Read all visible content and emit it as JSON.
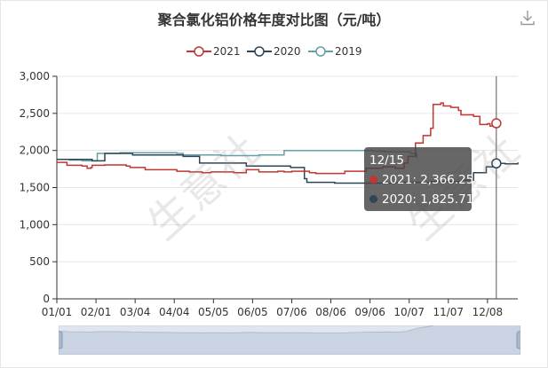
{
  "toolbar": {
    "download_icon": "download-icon"
  },
  "watermark": "生意社",
  "tooltip": {
    "date": "12/15",
    "rows": [
      {
        "label": "2021: 2,366.25",
        "color": "#c23531"
      },
      {
        "label": "2020: 1,825.71",
        "color": "#2f4554"
      }
    ]
  },
  "colors": {
    "s2021": "#c23531",
    "s2020": "#2f4554",
    "s2019": "#61a0a8",
    "axis": "#333333",
    "grid": "#e6e6e6",
    "crosshair": "#555555"
  },
  "chart_data": {
    "type": "line",
    "title": "聚合氯化铝价格年度对比图（元/吨）",
    "ylim": [
      0,
      3000
    ],
    "yticks": [
      0,
      500,
      1000,
      1500,
      2000,
      2500,
      3000
    ],
    "ytick_labels": [
      "0",
      "500",
      "1,000",
      "1,500",
      "2,000",
      "2,500",
      "3,000"
    ],
    "xlim": [
      0,
      365
    ],
    "xticks": [
      {
        "label": "01/01",
        "day": 0
      },
      {
        "label": "02/01",
        "day": 31
      },
      {
        "label": "03/04",
        "day": 62
      },
      {
        "label": "04/04",
        "day": 93
      },
      {
        "label": "05/05",
        "day": 124
      },
      {
        "label": "06/05",
        "day": 155
      },
      {
        "label": "07/06",
        "day": 186
      },
      {
        "label": "08/06",
        "day": 217
      },
      {
        "label": "09/06",
        "day": 248
      },
      {
        "label": "10/07",
        "day": 279
      },
      {
        "label": "11/07",
        "day": 310
      },
      {
        "label": "12/08",
        "day": 341
      }
    ],
    "crosshair_day": 348,
    "legend": {
      "position": "top-center"
    },
    "series": [
      {
        "name": "2021",
        "points": [
          [
            0,
            1840
          ],
          [
            8,
            1800
          ],
          [
            20,
            1790
          ],
          [
            24,
            1760
          ],
          [
            27,
            1770
          ],
          [
            28,
            1800
          ],
          [
            38,
            1805
          ],
          [
            55,
            1790
          ],
          [
            58,
            1770
          ],
          [
            70,
            1740
          ],
          [
            80,
            1740
          ],
          [
            95,
            1720
          ],
          [
            105,
            1710
          ],
          [
            115,
            1700
          ],
          [
            122,
            1710
          ],
          [
            140,
            1700
          ],
          [
            150,
            1740
          ],
          [
            160,
            1710
          ],
          [
            175,
            1720
          ],
          [
            180,
            1710
          ],
          [
            186,
            1720
          ],
          [
            200,
            1700
          ],
          [
            205,
            1690
          ],
          [
            225,
            1690
          ],
          [
            228,
            1720
          ],
          [
            245,
            1760
          ],
          [
            258,
            1780
          ],
          [
            268,
            1760
          ],
          [
            275,
            1830
          ],
          [
            278,
            1920
          ],
          [
            284,
            2100
          ],
          [
            290,
            2200
          ],
          [
            296,
            2300
          ],
          [
            298,
            2620
          ],
          [
            304,
            2640
          ],
          [
            306,
            2600
          ],
          [
            312,
            2580
          ],
          [
            318,
            2540
          ],
          [
            320,
            2480
          ],
          [
            330,
            2460
          ],
          [
            335,
            2350
          ],
          [
            341,
            2360
          ],
          [
            343,
            2330
          ],
          [
            346,
            2366
          ],
          [
            348,
            2366.25
          ]
        ]
      },
      {
        "name": "2020",
        "points": [
          [
            0,
            1880
          ],
          [
            10,
            1880
          ],
          [
            25,
            1880
          ],
          [
            28,
            1860
          ],
          [
            35,
            1860
          ],
          [
            38,
            1960
          ],
          [
            45,
            1960
          ],
          [
            60,
            1940
          ],
          [
            85,
            1940
          ],
          [
            95,
            1940
          ],
          [
            100,
            1920
          ],
          [
            110,
            1920
          ],
          [
            113,
            1830
          ],
          [
            125,
            1830
          ],
          [
            140,
            1830
          ],
          [
            150,
            1790
          ],
          [
            170,
            1790
          ],
          [
            185,
            1770
          ],
          [
            192,
            1770
          ],
          [
            196,
            1620
          ],
          [
            198,
            1570
          ],
          [
            210,
            1570
          ],
          [
            220,
            1560
          ],
          [
            250,
            1560
          ],
          [
            268,
            1570
          ],
          [
            296,
            1580
          ],
          [
            320,
            1600
          ],
          [
            330,
            1700
          ],
          [
            340,
            1780
          ],
          [
            348,
            1825.71
          ],
          [
            355,
            1820
          ],
          [
            365,
            1840
          ]
        ]
      },
      {
        "name": "2019",
        "points": [
          [
            0,
            1880
          ],
          [
            10,
            1870
          ],
          [
            20,
            1860
          ],
          [
            30,
            1860
          ],
          [
            32,
            1960
          ],
          [
            40,
            1960
          ],
          [
            50,
            1970
          ],
          [
            95,
            1960
          ],
          [
            100,
            1940
          ],
          [
            130,
            1930
          ],
          [
            160,
            1940
          ],
          [
            178,
            1940
          ],
          [
            180,
            2000
          ],
          [
            200,
            2000
          ],
          [
            220,
            2000
          ],
          [
            250,
            1990
          ],
          [
            260,
            1980
          ],
          [
            275,
            1980
          ],
          [
            280,
            1960
          ],
          [
            285,
            1900
          ]
        ]
      }
    ],
    "zoom": {
      "start": 0,
      "end": 100
    }
  }
}
